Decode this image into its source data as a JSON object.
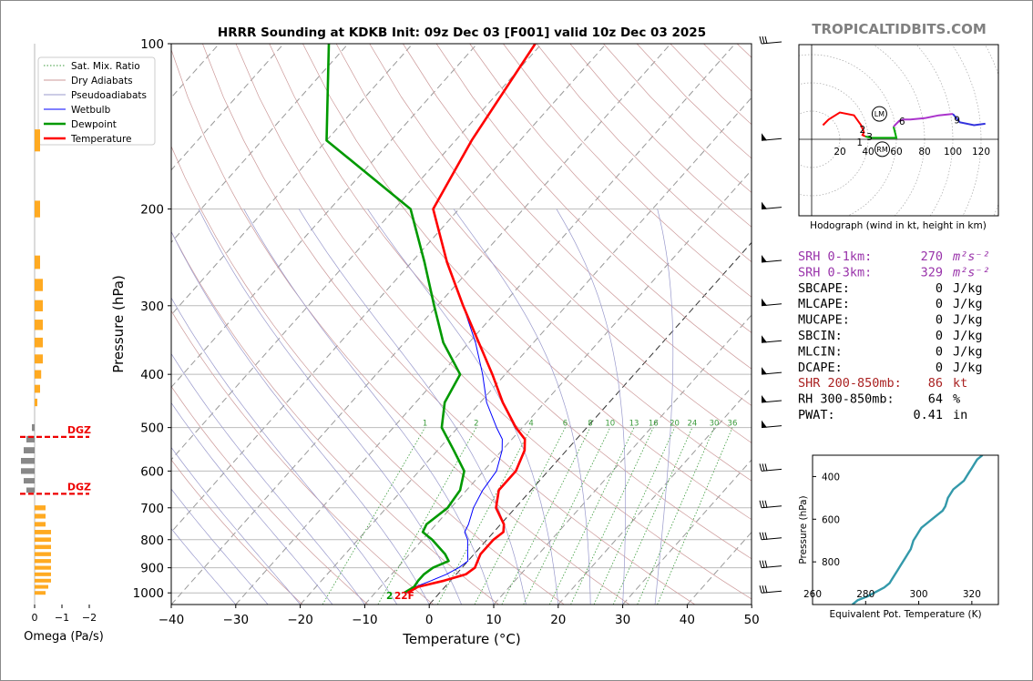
{
  "site_logo": "TROPICALTIDBITS.COM",
  "chart_data": [
    {
      "type": "skew-t",
      "title": "HRRR Sounding at KDKB Init: 09z Dec 03 [F001] valid 10z Dec 03 2025",
      "xlabel": "Temperature (°C)",
      "ylabel": "Pressure (hPa)",
      "xlim": [
        -40,
        50
      ],
      "ylim": [
        1050,
        100
      ],
      "x_ticks": [
        "−40",
        "−30",
        "−20",
        "−10",
        "0",
        "10",
        "20",
        "30",
        "40",
        "50"
      ],
      "y_ticks": [
        "100",
        "200",
        "300",
        "400",
        "500",
        "600",
        "700",
        "800",
        "900",
        "1000"
      ],
      "legend_position": "top-left",
      "legend": [
        {
          "label": "Sat. Mix. Ratio",
          "color": "#3a9a3a",
          "style": "dotted"
        },
        {
          "label": "Dry Adiabats",
          "color": "#cc9999",
          "style": "solid"
        },
        {
          "label": "Pseudoadiabats",
          "color": "#9999cc",
          "style": "solid"
        },
        {
          "label": "Wetbulb",
          "color": "#0000ff",
          "style": "solid"
        },
        {
          "label": "Dewpoint",
          "color": "#009900",
          "style": "solid"
        },
        {
          "label": "Temperature",
          "color": "#ff0000",
          "style": "solid"
        }
      ],
      "mixing_ratio_labels": [
        "1",
        "2",
        "4",
        "6",
        "8",
        "10",
        "13",
        "16",
        "20",
        "24",
        "30",
        "36"
      ],
      "surface_label": "2",
      "surface_temp_f_label": "22F",
      "temperature": {
        "p": [
          1000,
          975,
          950,
          925,
          900,
          875,
          850,
          800,
          775,
          750,
          700,
          650,
          600,
          550,
          525,
          500,
          450,
          400,
          350,
          300,
          250,
          200,
          150,
          100
        ],
        "t": [
          -5.0,
          -4.2,
          -1.0,
          1.5,
          2.0,
          1.5,
          1.0,
          1.0,
          1.5,
          0.5,
          -3.0,
          -5.0,
          -5.0,
          -6.5,
          -8.0,
          -11.0,
          -16.5,
          -22.0,
          -28.5,
          -36.0,
          -44.5,
          -54.0,
          -57.5,
          -61.0
        ]
      },
      "dewpoint": {
        "p": [
          1000,
          975,
          950,
          925,
          900,
          875,
          850,
          800,
          775,
          750,
          700,
          650,
          600,
          550,
          500,
          450,
          400,
          350,
          300,
          250,
          200,
          150,
          100
        ],
        "td": [
          -5.5,
          -4.8,
          -5.0,
          -5.0,
          -4.5,
          -3.0,
          -4.5,
          -8.5,
          -11.0,
          -11.5,
          -10.5,
          -11.0,
          -13.0,
          -17.5,
          -22.5,
          -25.5,
          -27.0,
          -34.0,
          -40.5,
          -48.0,
          -57.5,
          -80.0,
          -93.0
        ]
      },
      "wetbulb": {
        "p": [
          1000,
          975,
          950,
          925,
          900,
          875,
          850,
          800,
          775,
          750,
          700,
          650,
          600,
          550,
          525,
          500,
          450,
          400,
          350,
          300
        ],
        "tw": [
          -5.2,
          -4.6,
          -3.0,
          -1.5,
          -0.5,
          0.0,
          -1.0,
          -3.0,
          -4.5,
          -5.0,
          -6.5,
          -7.5,
          -8.0,
          -10.0,
          -11.5,
          -14.0,
          -19.0,
          -23.5,
          -29.0,
          -36.0
        ]
      },
      "wind_barb_pressures": [
        100,
        150,
        200,
        250,
        300,
        350,
        400,
        450,
        500,
        600,
        700,
        800,
        900,
        1000
      ]
    },
    {
      "type": "bar",
      "name": "omega-profile",
      "xlabel": "Omega (Pa/s)",
      "x_ticks": [
        "0",
        "−1",
        "−2"
      ],
      "dgz_label": "DGZ",
      "dgz_pressures": [
        520,
        660
      ],
      "p": [
        100,
        150,
        200,
        250,
        275,
        300,
        325,
        350,
        375,
        400,
        425,
        450,
        475,
        500,
        525,
        550,
        575,
        600,
        625,
        650,
        675,
        700,
        725,
        750,
        775,
        800,
        825,
        850,
        875,
        900,
        925,
        950,
        975,
        1000
      ],
      "omega": [
        0.0,
        0.1,
        0.1,
        0.1,
        0.15,
        0.15,
        0.15,
        0.15,
        0.15,
        0.12,
        0.1,
        0.05,
        0.0,
        -0.05,
        -0.15,
        -0.2,
        -0.25,
        -0.25,
        -0.2,
        -0.15,
        0.0,
        0.2,
        0.2,
        0.2,
        0.3,
        0.3,
        0.3,
        0.3,
        0.3,
        0.3,
        0.3,
        0.3,
        0.25,
        0.2
      ]
    },
    {
      "type": "line",
      "name": "hodograph",
      "xlabel": "Hodograph (wind in kt, height in km)",
      "x_ticks": [
        "20",
        "40",
        "60",
        "80",
        "100",
        "120"
      ],
      "height_labels": [
        "1",
        "2",
        "3",
        "6",
        "9"
      ],
      "marker_labels": [
        "LM",
        "RM"
      ],
      "u": [
        8,
        12,
        20,
        30,
        35,
        37,
        36,
        38,
        42,
        50,
        60,
        58,
        62,
        65,
        70,
        80,
        90,
        100,
        105,
        115,
        123
      ],
      "v": [
        10,
        14,
        19,
        17,
        10,
        5,
        3,
        2,
        1,
        1,
        1,
        9,
        13,
        14,
        14,
        15,
        17,
        18,
        12,
        10,
        11
      ],
      "segment_colors": [
        "#ff0000",
        "#00aa00",
        "#aa33cc",
        "#3333dd"
      ],
      "lm": [
        48,
        18
      ],
      "rm": [
        50,
        -7
      ]
    },
    {
      "type": "line",
      "name": "theta-e-profile",
      "xlabel": "Equivalent Pot. Temperature (K)",
      "ylabel": "Pressure (hPa)",
      "x_ticks": [
        "260",
        "280",
        "300",
        "320"
      ],
      "y_ticks": [
        "400",
        "600",
        "800"
      ],
      "xlim": [
        260,
        330
      ],
      "ylim": [
        1000,
        300
      ],
      "color": "#3399aa",
      "p": [
        1000,
        980,
        960,
        940,
        920,
        900,
        880,
        860,
        840,
        820,
        800,
        780,
        760,
        740,
        720,
        700,
        680,
        660,
        640,
        620,
        600,
        580,
        560,
        540,
        520,
        500,
        480,
        460,
        440,
        420,
        400,
        380,
        360,
        340,
        320,
        300
      ],
      "theta_e": [
        275,
        277,
        281,
        284,
        287,
        289,
        290,
        291,
        292,
        293,
        294,
        295,
        296,
        297,
        297.5,
        298,
        299,
        300,
        301,
        303,
        305,
        307,
        309,
        310,
        310.5,
        311,
        312,
        313,
        315,
        317,
        318,
        319,
        320,
        321,
        322,
        324
      ]
    }
  ],
  "indices": [
    {
      "label": "SRH 0-1km:",
      "value": "270",
      "unit": "m²s⁻²",
      "color": "#9933aa"
    },
    {
      "label": "SRH 0-3km:",
      "value": "329",
      "unit": "m²s⁻²",
      "color": "#9933aa"
    },
    {
      "label": "SBCAPE:",
      "value": "0",
      "unit": "J/kg",
      "color": "#000000"
    },
    {
      "label": "MLCAPE:",
      "value": "0",
      "unit": "J/kg",
      "color": "#000000"
    },
    {
      "label": "MUCAPE:",
      "value": "0",
      "unit": "J/kg",
      "color": "#000000"
    },
    {
      "label": "SBCIN:",
      "value": "0",
      "unit": "J/kg",
      "color": "#000000"
    },
    {
      "label": "MLCIN:",
      "value": "0",
      "unit": "J/kg",
      "color": "#000000"
    },
    {
      "label": "DCAPE:",
      "value": "0",
      "unit": "J/kg",
      "color": "#000000"
    },
    {
      "label": "SHR 200-850mb:",
      "value": "86",
      "unit": "kt",
      "color": "#aa2222"
    },
    {
      "label": "RH 300-850mb:",
      "value": "64",
      "unit": "%",
      "color": "#000000"
    },
    {
      "label": "PWAT:",
      "value": "0.41",
      "unit": "in",
      "color": "#000000"
    }
  ]
}
